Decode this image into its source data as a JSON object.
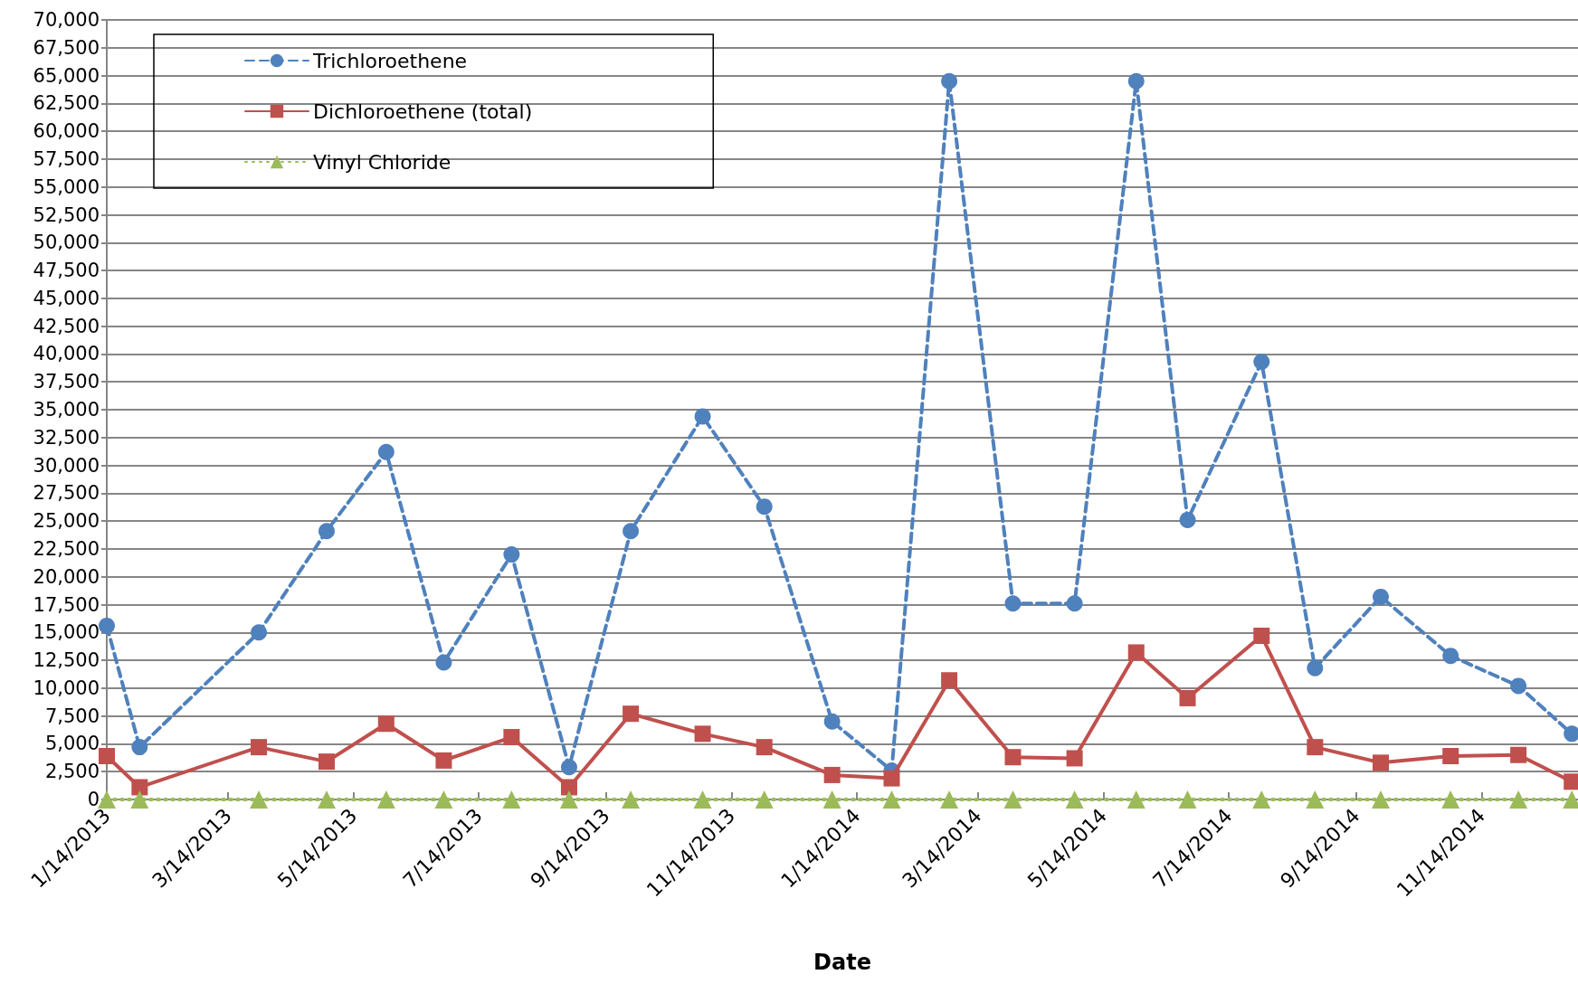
{
  "chart_data": {
    "type": "line",
    "xlabel": "Date",
    "x": [
      "2013-01-14",
      "2013-01-30",
      "2013-03-29",
      "2013-05-01",
      "2013-05-30",
      "2013-06-27",
      "2013-07-30",
      "2013-08-27",
      "2013-09-26",
      "2013-10-31",
      "2013-11-30",
      "2014-01-02",
      "2014-01-31",
      "2014-02-28",
      "2014-03-31",
      "2014-04-30",
      "2014-05-30",
      "2014-06-24",
      "2014-07-30",
      "2014-08-25",
      "2014-09-26",
      "2014-10-30",
      "2014-12-02",
      "2014-12-28"
    ],
    "series": [
      {
        "name": "Trichloroethene",
        "color": "#4f81bd",
        "marker": "circle",
        "line_style": "dashed",
        "values": [
          15600,
          4700,
          15000,
          24100,
          31200,
          12300,
          22000,
          2900,
          24100,
          34400,
          26300,
          7000,
          2600,
          64500,
          17600,
          17600,
          64500,
          25100,
          39300,
          11800,
          18200,
          12900,
          10200,
          5900
        ]
      },
      {
        "name": "Dichloroethene (total)",
        "color": "#c0504d",
        "marker": "square",
        "line_style": "solid",
        "values": [
          3900,
          1100,
          4700,
          3400,
          6800,
          3500,
          5600,
          1100,
          7700,
          5900,
          4700,
          2200,
          1900,
          10700,
          3800,
          3700,
          13200,
          9100,
          14700,
          4700,
          3300,
          3900,
          4000,
          1600
        ]
      },
      {
        "name": "Vinyl Chloride",
        "color": "#9bbb59",
        "marker": "triangle",
        "line_style": "dotted",
        "values": [
          0,
          0,
          0,
          0,
          0,
          0,
          0,
          0,
          0,
          0,
          0,
          0,
          0,
          0,
          0,
          0,
          0,
          0,
          0,
          0,
          0,
          0,
          0,
          0
        ]
      }
    ],
    "xlim": [
      "2013-01-14",
      "2014-12-31"
    ],
    "xticks": [
      {
        "value": "2013-01-14",
        "label": "1/14/2013"
      },
      {
        "value": "2013-03-14",
        "label": "3/14/2013"
      },
      {
        "value": "2013-05-14",
        "label": "5/14/2013"
      },
      {
        "value": "2013-07-14",
        "label": "7/14/2013"
      },
      {
        "value": "2013-09-14",
        "label": "9/14/2013"
      },
      {
        "value": "2013-11-14",
        "label": "11/14/2013"
      },
      {
        "value": "2014-01-14",
        "label": "1/14/2014"
      },
      {
        "value": "2014-03-14",
        "label": "3/14/2014"
      },
      {
        "value": "2014-05-14",
        "label": "5/14/2014"
      },
      {
        "value": "2014-07-14",
        "label": "7/14/2014"
      },
      {
        "value": "2014-09-14",
        "label": "9/14/2014"
      },
      {
        "value": "2014-11-14",
        "label": "11/14/2014"
      }
    ],
    "ylim": [
      0,
      70000
    ],
    "yticks": [
      0,
      {
        "value": 2500,
        "label": "2,500"
      },
      {
        "value": 5000,
        "label": "5,000"
      },
      {
        "value": 7500,
        "label": "7,500"
      },
      {
        "value": 10000,
        "label": "10,000"
      },
      {
        "value": 12500,
        "label": "12,500"
      },
      {
        "value": 15000,
        "label": "15,000"
      },
      {
        "value": 17500,
        "label": "17,500"
      },
      {
        "value": 20000,
        "label": "20,000"
      },
      {
        "value": 22500,
        "label": "22,500"
      },
      {
        "value": 25000,
        "label": "25,000"
      },
      {
        "value": 27500,
        "label": "27,500"
      },
      {
        "value": 30000,
        "label": "30,000"
      },
      {
        "value": 32500,
        "label": "32,500"
      },
      {
        "value": 35000,
        "label": "35,000"
      },
      {
        "value": 37500,
        "label": "37,500"
      },
      {
        "value": 40000,
        "label": "40,000"
      },
      {
        "value": 42500,
        "label": "42,500"
      },
      {
        "value": 45000,
        "label": "45,000"
      },
      {
        "value": 47500,
        "label": "47,500"
      },
      {
        "value": 50000,
        "label": "50,000"
      },
      {
        "value": 52500,
        "label": "52,500"
      },
      {
        "value": 55000,
        "label": "55,000"
      },
      {
        "value": 57500,
        "label": "57,500"
      },
      {
        "value": 60000,
        "label": "60,000"
      },
      {
        "value": 62500,
        "label": "62,500"
      },
      {
        "value": 65000,
        "label": "65,000"
      },
      {
        "value": 67500,
        "label": "67,500"
      },
      {
        "value": 70000,
        "label": "70,000"
      }
    ],
    "grid": "y",
    "legend": "top left"
  }
}
